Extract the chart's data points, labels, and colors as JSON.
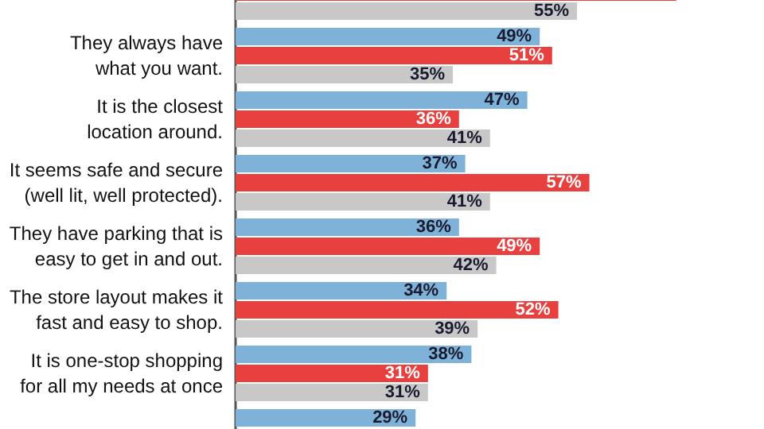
{
  "chart_data": {
    "type": "bar",
    "orientation": "horizontal",
    "categories": [
      null,
      "They always have\nwhat you want.",
      "It is the closest\nlocation around.",
      "It seems safe and secure\n(well lit, well protected).",
      "They have parking that is\neasy to get in and out.",
      "The store layout makes it\nfast and easy to shop.",
      "It is one-stop shopping\nfor all my needs at once",
      null
    ],
    "series": [
      {
        "color": "#7fb2d9",
        "values": [
          null,
          49,
          47,
          37,
          36,
          34,
          38,
          29
        ],
        "value_labels": [
          null,
          "49%",
          "47%",
          "37%",
          "36%",
          "34%",
          "38%",
          "29%"
        ]
      },
      {
        "color": "#e8403f",
        "values": [
          71,
          51,
          36,
          57,
          49,
          52,
          31,
          null
        ],
        "value_labels": [
          null,
          "51%",
          "36%",
          "57%",
          "49%",
          "52%",
          "31%",
          null
        ]
      },
      {
        "color": "#c8c8c8",
        "values": [
          55,
          35,
          41,
          41,
          42,
          39,
          31,
          null
        ],
        "value_labels": [
          "55%",
          "35%",
          "41%",
          "41%",
          "42%",
          "39%",
          "31%",
          null
        ]
      }
    ],
    "grid": false
  }
}
